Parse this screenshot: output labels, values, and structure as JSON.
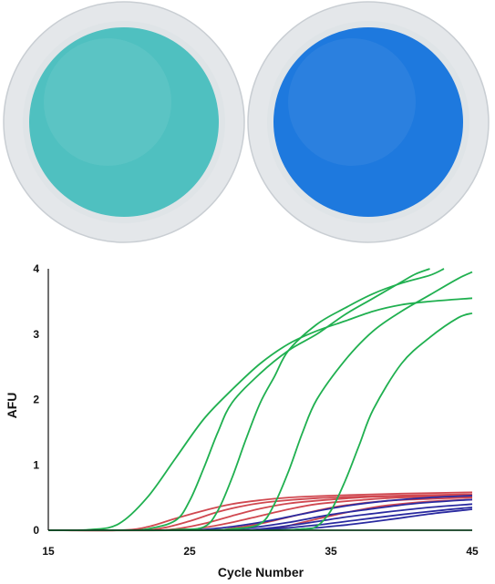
{
  "photo": {
    "wells": [
      {
        "name": "left-well",
        "fill": "#4fc0c0",
        "edge": "#d9dde1"
      },
      {
        "name": "right-well",
        "fill": "#1e79de",
        "edge": "#d9dde1"
      }
    ]
  },
  "chart_data": {
    "type": "line",
    "title": "",
    "xlabel": "Cycle Number",
    "ylabel": "AFU",
    "xlim": [
      15,
      45
    ],
    "ylim": [
      0,
      4
    ],
    "xticks": [
      15,
      25,
      35,
      45
    ],
    "yticks": [
      0,
      1,
      2,
      3,
      4
    ],
    "grid": false,
    "legend": "none",
    "series": [
      {
        "color": "#20b050",
        "points": [
          [
            15,
            0
          ],
          [
            18,
            0.01
          ],
          [
            20,
            0.1
          ],
          [
            22,
            0.5
          ],
          [
            24,
            1.1
          ],
          [
            26,
            1.7
          ],
          [
            28,
            2.15
          ],
          [
            30,
            2.55
          ],
          [
            32,
            2.85
          ],
          [
            34,
            3.05
          ],
          [
            36,
            3.2
          ],
          [
            38,
            3.35
          ],
          [
            40,
            3.45
          ],
          [
            42,
            3.5
          ],
          [
            45,
            3.55
          ]
        ]
      },
      {
        "color": "#20b050",
        "points": [
          [
            15,
            0
          ],
          [
            20,
            0
          ],
          [
            22,
            0.02
          ],
          [
            24,
            0.15
          ],
          [
            25,
            0.45
          ],
          [
            26,
            0.95
          ],
          [
            27,
            1.5
          ],
          [
            28,
            1.95
          ],
          [
            30,
            2.4
          ],
          [
            32,
            2.75
          ],
          [
            34,
            3.0
          ],
          [
            36,
            3.3
          ],
          [
            38,
            3.55
          ],
          [
            40,
            3.8
          ],
          [
            41,
            3.92
          ],
          [
            42,
            4.0
          ]
        ]
      },
      {
        "color": "#20b050",
        "points": [
          [
            15,
            0
          ],
          [
            22,
            0
          ],
          [
            24,
            0.01
          ],
          [
            26,
            0.05
          ],
          [
            27,
            0.3
          ],
          [
            28,
            0.8
          ],
          [
            29,
            1.4
          ],
          [
            30,
            1.95
          ],
          [
            31,
            2.35
          ],
          [
            32,
            2.75
          ],
          [
            34,
            3.15
          ],
          [
            36,
            3.4
          ],
          [
            38,
            3.62
          ],
          [
            40,
            3.78
          ],
          [
            42,
            3.9
          ],
          [
            43,
            4.0
          ]
        ]
      },
      {
        "color": "#20b050",
        "points": [
          [
            15,
            0
          ],
          [
            25,
            0
          ],
          [
            28,
            0.02
          ],
          [
            30,
            0.1
          ],
          [
            31,
            0.4
          ],
          [
            32,
            0.9
          ],
          [
            33,
            1.5
          ],
          [
            34,
            2.0
          ],
          [
            36,
            2.6
          ],
          [
            38,
            3.05
          ],
          [
            40,
            3.35
          ],
          [
            42,
            3.6
          ],
          [
            44,
            3.85
          ],
          [
            45,
            3.95
          ]
        ]
      },
      {
        "color": "#20b050",
        "points": [
          [
            15,
            0
          ],
          [
            30,
            0
          ],
          [
            33,
            0.02
          ],
          [
            34,
            0.06
          ],
          [
            35,
            0.3
          ],
          [
            36,
            0.75
          ],
          [
            37,
            1.3
          ],
          [
            38,
            1.85
          ],
          [
            40,
            2.55
          ],
          [
            42,
            2.95
          ],
          [
            44,
            3.25
          ],
          [
            45,
            3.32
          ]
        ]
      },
      {
        "color": "#20b050",
        "points": [
          [
            15,
            0
          ],
          [
            45,
            0
          ]
        ]
      },
      {
        "color": "#d04850",
        "points": [
          [
            15,
            0
          ],
          [
            20,
            0
          ],
          [
            22,
            0.05
          ],
          [
            24,
            0.18
          ],
          [
            26,
            0.3
          ],
          [
            28,
            0.4
          ],
          [
            30,
            0.46
          ],
          [
            32,
            0.5
          ],
          [
            35,
            0.53
          ],
          [
            40,
            0.56
          ],
          [
            45,
            0.58
          ]
        ]
      },
      {
        "color": "#d04850",
        "points": [
          [
            15,
            0
          ],
          [
            21,
            0
          ],
          [
            23,
            0.03
          ],
          [
            25,
            0.14
          ],
          [
            27,
            0.28
          ],
          [
            29,
            0.38
          ],
          [
            31,
            0.44
          ],
          [
            34,
            0.49
          ],
          [
            38,
            0.52
          ],
          [
            42,
            0.54
          ],
          [
            45,
            0.55
          ]
        ]
      },
      {
        "color": "#d04850",
        "points": [
          [
            15,
            0
          ],
          [
            22,
            0
          ],
          [
            24,
            0.02
          ],
          [
            26,
            0.1
          ],
          [
            28,
            0.22
          ],
          [
            30,
            0.33
          ],
          [
            32,
            0.41
          ],
          [
            35,
            0.47
          ],
          [
            38,
            0.51
          ],
          [
            42,
            0.53
          ],
          [
            45,
            0.54
          ]
        ]
      },
      {
        "color": "#d04850",
        "points": [
          [
            15,
            0
          ],
          [
            24,
            0
          ],
          [
            26,
            0.04
          ],
          [
            28,
            0.12
          ],
          [
            30,
            0.22
          ],
          [
            32,
            0.32
          ],
          [
            34,
            0.4
          ],
          [
            37,
            0.46
          ],
          [
            40,
            0.5
          ],
          [
            45,
            0.52
          ]
        ]
      },
      {
        "color": "#d04850",
        "points": [
          [
            15,
            0
          ],
          [
            26,
            0
          ],
          [
            28,
            0.03
          ],
          [
            30,
            0.1
          ],
          [
            32,
            0.2
          ],
          [
            34,
            0.3
          ],
          [
            36,
            0.38
          ],
          [
            39,
            0.45
          ],
          [
            42,
            0.48
          ],
          [
            45,
            0.5
          ]
        ]
      },
      {
        "color": "#d04850",
        "points": [
          [
            15,
            0
          ],
          [
            28,
            0
          ],
          [
            31,
            0.03
          ],
          [
            33,
            0.12
          ],
          [
            35,
            0.22
          ],
          [
            37,
            0.31
          ],
          [
            39,
            0.38
          ],
          [
            42,
            0.44
          ],
          [
            45,
            0.47
          ]
        ]
      },
      {
        "color": "#2a2aa0",
        "points": [
          [
            15,
            0
          ],
          [
            24,
            0
          ],
          [
            27,
            0.03
          ],
          [
            30,
            0.12
          ],
          [
            33,
            0.25
          ],
          [
            36,
            0.37
          ],
          [
            39,
            0.45
          ],
          [
            42,
            0.5
          ],
          [
            45,
            0.53
          ]
        ]
      },
      {
        "color": "#2a2aa0",
        "points": [
          [
            15,
            0
          ],
          [
            26,
            0
          ],
          [
            29,
            0.03
          ],
          [
            32,
            0.12
          ],
          [
            35,
            0.24
          ],
          [
            38,
            0.33
          ],
          [
            41,
            0.41
          ],
          [
            45,
            0.47
          ]
        ]
      },
      {
        "color": "#2a2aa0",
        "points": [
          [
            15,
            0
          ],
          [
            27,
            0
          ],
          [
            30,
            0.02
          ],
          [
            33,
            0.1
          ],
          [
            36,
            0.2
          ],
          [
            39,
            0.28
          ],
          [
            42,
            0.35
          ],
          [
            45,
            0.4
          ]
        ]
      },
      {
        "color": "#2a2aa0",
        "points": [
          [
            15,
            0
          ],
          [
            28,
            0
          ],
          [
            31,
            0.02
          ],
          [
            34,
            0.08
          ],
          [
            37,
            0.16
          ],
          [
            40,
            0.24
          ],
          [
            43,
            0.31
          ],
          [
            45,
            0.35
          ]
        ]
      },
      {
        "color": "#2a2aa0",
        "points": [
          [
            15,
            0
          ],
          [
            30,
            0
          ],
          [
            33,
            0.02
          ],
          [
            36,
            0.08
          ],
          [
            39,
            0.16
          ],
          [
            42,
            0.25
          ],
          [
            45,
            0.32
          ]
        ]
      }
    ]
  }
}
